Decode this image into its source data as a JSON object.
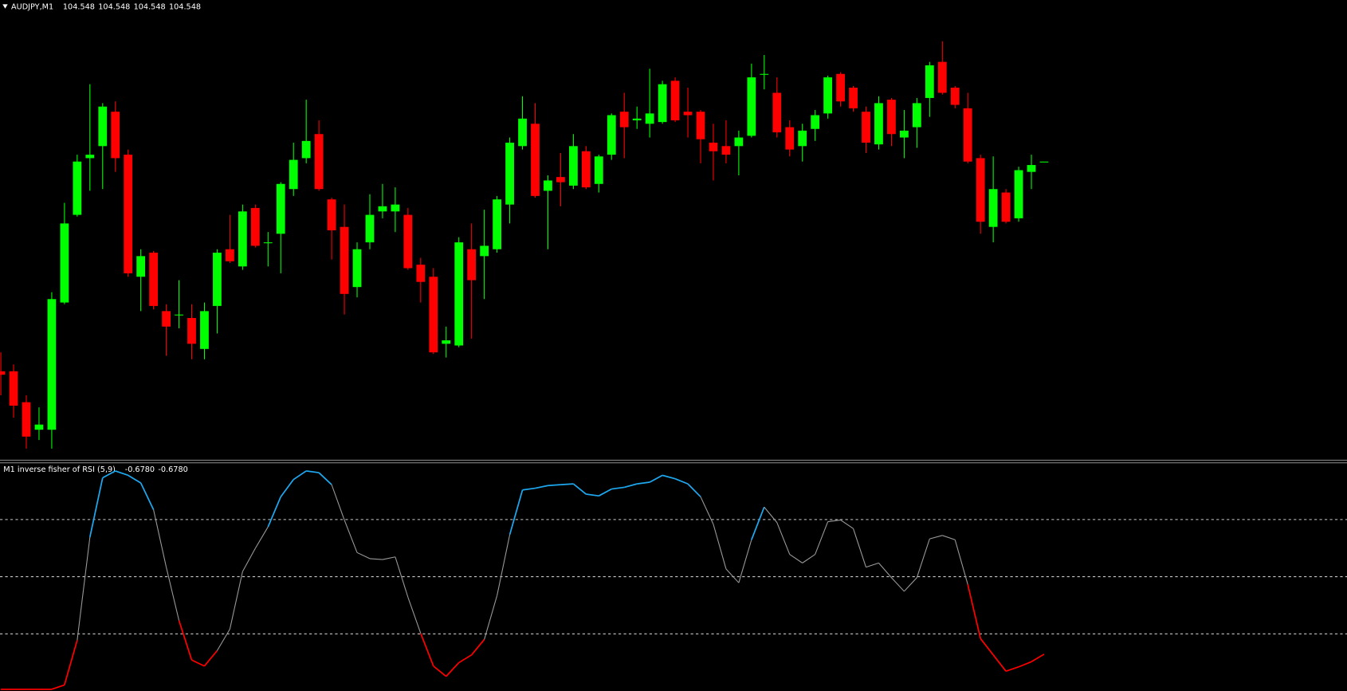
{
  "chart_data": [
    {
      "type": "candlestick",
      "title": "AUDJPY,M1",
      "header_values": [
        104.548,
        104.548,
        104.548,
        104.548
      ],
      "open": [
        104.426,
        104.426,
        104.408,
        104.392,
        104.392,
        104.466,
        104.517,
        104.55,
        104.557,
        104.577,
        104.552,
        104.481,
        104.495,
        104.461,
        104.459,
        104.457,
        104.439,
        104.464,
        104.497,
        104.487,
        104.521,
        104.501,
        104.506,
        104.532,
        104.55,
        104.564,
        104.526,
        104.51,
        104.475,
        104.501,
        104.519,
        104.519,
        104.517,
        104.488,
        104.481,
        104.442,
        104.441,
        104.497,
        104.493,
        104.497,
        104.523,
        104.557,
        104.57,
        104.531,
        104.539,
        104.534,
        104.554,
        104.535,
        104.552,
        104.577,
        104.572,
        104.57,
        104.571,
        104.595,
        104.577,
        104.577,
        104.559,
        104.557,
        104.557,
        104.563,
        104.599,
        104.588,
        104.568,
        104.557,
        104.567,
        104.576,
        104.599,
        104.591,
        104.577,
        104.558,
        104.584,
        104.562,
        104.568,
        104.585,
        104.606,
        104.591,
        104.579,
        104.55,
        104.51,
        104.53,
        104.515,
        104.542,
        104.548
      ],
      "high": [
        104.437,
        104.43,
        104.412,
        104.405,
        104.472,
        104.524,
        104.552,
        104.593,
        104.582,
        104.583,
        104.555,
        104.497,
        104.496,
        104.465,
        104.479,
        104.465,
        104.466,
        104.497,
        104.517,
        104.523,
        104.523,
        104.507,
        104.536,
        104.559,
        104.584,
        104.572,
        104.527,
        104.523,
        104.501,
        104.529,
        104.535,
        104.533,
        104.521,
        104.492,
        104.486,
        104.452,
        104.504,
        104.512,
        104.52,
        104.528,
        104.562,
        104.586,
        104.582,
        104.54,
        104.553,
        104.564,
        104.557,
        104.552,
        104.576,
        104.588,
        104.58,
        104.602,
        104.595,
        104.597,
        104.591,
        104.578,
        104.57,
        104.572,
        104.566,
        104.605,
        104.61,
        104.597,
        104.572,
        104.57,
        104.578,
        104.598,
        104.6,
        104.592,
        104.58,
        104.586,
        104.585,
        104.578,
        104.585,
        104.606,
        104.618,
        104.592,
        104.588,
        104.552,
        104.551,
        104.532,
        104.545,
        104.552,
        104.548
      ],
      "low": [
        104.412,
        104.399,
        104.381,
        104.386,
        104.381,
        104.465,
        104.516,
        104.531,
        104.532,
        104.542,
        104.481,
        104.461,
        104.462,
        104.435,
        104.451,
        104.433,
        104.433,
        104.448,
        104.489,
        104.485,
        104.498,
        104.487,
        104.483,
        104.528,
        104.547,
        104.531,
        104.491,
        104.459,
        104.469,
        104.497,
        104.515,
        104.507,
        104.485,
        104.466,
        104.436,
        104.434,
        104.44,
        104.445,
        104.468,
        104.495,
        104.512,
        104.555,
        104.527,
        104.497,
        104.522,
        104.532,
        104.532,
        104.53,
        104.549,
        104.55,
        104.567,
        104.562,
        104.57,
        104.571,
        104.562,
        104.547,
        104.537,
        104.547,
        104.54,
        104.562,
        104.59,
        104.562,
        104.551,
        104.548,
        104.56,
        104.573,
        104.58,
        104.577,
        104.553,
        104.555,
        104.557,
        104.55,
        104.556,
        104.574,
        104.587,
        104.579,
        104.547,
        104.506,
        104.501,
        104.512,
        104.513,
        104.532,
        104.548
      ],
      "close": [
        104.424,
        104.406,
        104.388,
        104.395,
        104.468,
        104.512,
        104.548,
        104.552,
        104.58,
        104.55,
        104.483,
        104.493,
        104.464,
        104.452,
        104.459,
        104.442,
        104.461,
        104.495,
        104.49,
        104.519,
        104.499,
        104.501,
        104.535,
        104.549,
        104.56,
        104.532,
        104.508,
        104.471,
        104.497,
        104.517,
        104.522,
        104.523,
        104.486,
        104.478,
        104.437,
        104.444,
        104.501,
        104.479,
        104.499,
        104.526,
        104.559,
        104.573,
        104.528,
        104.537,
        104.536,
        104.557,
        104.533,
        104.551,
        104.575,
        104.568,
        104.573,
        104.576,
        104.593,
        104.572,
        104.575,
        104.561,
        104.554,
        104.552,
        104.562,
        104.597,
        104.599,
        104.565,
        104.555,
        104.566,
        104.575,
        104.597,
        104.583,
        104.579,
        104.559,
        104.582,
        104.564,
        104.566,
        104.582,
        104.604,
        104.588,
        104.581,
        104.548,
        104.513,
        104.532,
        104.513,
        104.543,
        104.546,
        104.548
      ],
      "ylim": [
        104.3745,
        104.642
      ],
      "up_color": "#00ff00",
      "down_color": "#ff0000"
    },
    {
      "type": "line",
      "title": "M1 inverse fisher of RSI (5,9)",
      "header_values": [
        {
          "value": -0.678,
          "label": "-0.6780"
        },
        {
          "value": -0.678,
          "label": "-0.6780"
        }
      ],
      "values": [
        -0.985,
        -0.985,
        -0.985,
        -0.985,
        -0.985,
        -0.947,
        -0.556,
        0.346,
        0.865,
        0.925,
        0.887,
        0.82,
        0.586,
        0.083,
        -0.383,
        -0.729,
        -0.782,
        -0.647,
        -0.459,
        0.045,
        0.248,
        0.436,
        0.699,
        0.85,
        0.925,
        0.91,
        0.805,
        0.496,
        0.211,
        0.158,
        0.15,
        0.173,
        -0.18,
        -0.496,
        -0.782,
        -0.872,
        -0.752,
        -0.684,
        -0.549,
        -0.165,
        0.368,
        0.759,
        0.774,
        0.797,
        0.805,
        0.812,
        0.722,
        0.707,
        0.767,
        0.782,
        0.812,
        0.827,
        0.887,
        0.857,
        0.812,
        0.699,
        0.459,
        0.068,
        -0.053,
        0.323,
        0.609,
        0.474,
        0.195,
        0.12,
        0.195,
        0.481,
        0.496,
        0.421,
        0.083,
        0.12,
        -0.008,
        -0.128,
        -0.008,
        0.331,
        0.361,
        0.323,
        -0.068,
        -0.541,
        -0.684,
        -0.827,
        -0.789,
        -0.744,
        -0.678
      ],
      "ylim": [
        -1,
        1
      ],
      "levels": [
        0.5,
        0,
        -0.5
      ],
      "up_color": "#1ea8f0",
      "down_color": "#ff0000",
      "neutral_color": "#9a9a9a",
      "level_color": "#c8c8c8"
    }
  ]
}
